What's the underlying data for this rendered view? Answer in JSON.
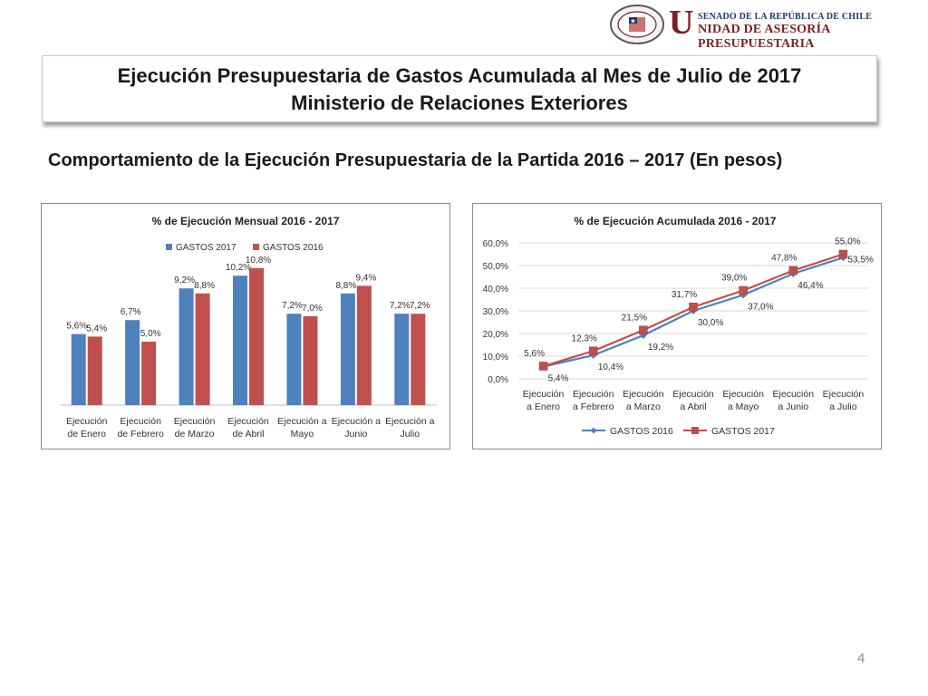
{
  "logo": {
    "seal_text": "REPÚBLICA DE CHILE · SENADO",
    "letter": "U",
    "line1": "SENADO DE LA REPÚBLICA DE CHILE",
    "line2": "NIDAD DE ASESORÍA PRESUPUESTARIA"
  },
  "title": {
    "line1": "Ejecución Presupuestaria de Gastos Acumulada al Mes de Julio de 2017",
    "line2": "Ministerio de Relaciones Exteriores"
  },
  "subtitle": "Comportamiento de la Ejecución Presupuestaria de la Partida 2016 – 2017 (En pesos)",
  "page_number": "4",
  "colors": {
    "blue": "#4f81bd",
    "red": "#c0504d",
    "grid": "#d9d9d9",
    "text": "#333333"
  },
  "chart_data": [
    {
      "type": "bar",
      "title": "% de Ejecución Mensual 2016 - 2017",
      "categories": [
        [
          "Ejecución",
          "de Enero"
        ],
        [
          "Ejecución",
          "de Febrero"
        ],
        [
          "Ejecución",
          "de Marzo"
        ],
        [
          "Ejecución",
          "de Abril"
        ],
        [
          "Ejecución a",
          "Mayo"
        ],
        [
          "Ejecución a",
          "Junio"
        ],
        [
          "Ejecución a",
          "Julio"
        ]
      ],
      "series": [
        {
          "name": "GASTOS 2017",
          "values": [
            5.6,
            6.7,
            9.2,
            10.2,
            7.2,
            8.8,
            7.2
          ],
          "labels": [
            "5,6%",
            "6,7%",
            "9,2%",
            "10,2%",
            "7,2%",
            "8,8%",
            "7,2%"
          ]
        },
        {
          "name": "GASTOS 2016",
          "values": [
            5.4,
            5.0,
            8.8,
            10.8,
            7.0,
            9.4,
            7.2
          ],
          "labels": [
            "5,4%",
            "5,0%",
            "8,8%",
            "10,8%",
            "7,0%",
            "9,4%",
            "7,2%"
          ]
        }
      ],
      "ylim": [
        0,
        12
      ],
      "legend": "top",
      "xlabel": "",
      "ylabel": ""
    },
    {
      "type": "line",
      "title": "% de Ejecución Acumulada 2016 - 2017",
      "categories": [
        [
          "Ejecución",
          "a Enero"
        ],
        [
          "Ejecución",
          "a Febrero"
        ],
        [
          "Ejecución",
          "a Marzo"
        ],
        [
          "Ejecución",
          "a Abril"
        ],
        [
          "Ejecución",
          "a Mayo"
        ],
        [
          "Ejecución",
          "a Junio"
        ],
        [
          "Ejecución",
          "a Julio"
        ]
      ],
      "series": [
        {
          "name": "GASTOS 2016",
          "values": [
            5.4,
            10.4,
            19.2,
            30.0,
            37.0,
            46.4,
            53.5
          ],
          "labels": [
            "5,4%",
            "10,4%",
            "19,2%",
            "30,0%",
            "37,0%",
            "46,4%",
            "53,5%"
          ]
        },
        {
          "name": "GASTOS 2017",
          "values": [
            5.6,
            12.3,
            21.5,
            31.7,
            39.0,
            47.8,
            55.0
          ],
          "labels": [
            "5,6%",
            "12,3%",
            "21,5%",
            "31,7%",
            "39,0%",
            "47,8%",
            "55,0%"
          ]
        }
      ],
      "ylim": [
        0,
        60
      ],
      "yticks": [
        "0,0%",
        "10,0%",
        "20,0%",
        "30,0%",
        "40,0%",
        "50,0%",
        "60,0%"
      ],
      "legend": "bottom",
      "grid": true,
      "xlabel": "",
      "ylabel": ""
    }
  ]
}
